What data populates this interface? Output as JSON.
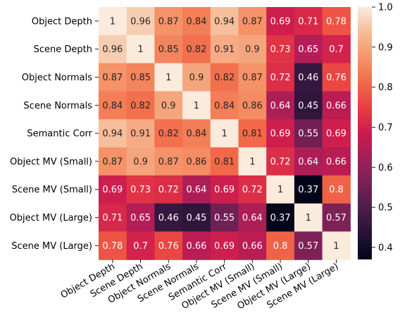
{
  "chart_data": {
    "type": "heatmap",
    "title": "",
    "xlabel": "",
    "ylabel": "",
    "labels": [
      "Object Depth",
      "Scene Depth",
      "Object Normals",
      "Scene Normals",
      "Semantic Corr",
      "Object MV (Small)",
      "Scene MV (Small)",
      "Object MV (Large)",
      "Scene MV (Large)"
    ],
    "matrix": [
      [
        1,
        0.96,
        0.87,
        0.84,
        0.94,
        0.87,
        0.69,
        0.71,
        0.78
      ],
      [
        0.96,
        1,
        0.85,
        0.82,
        0.91,
        0.9,
        0.73,
        0.65,
        0.7
      ],
      [
        0.87,
        0.85,
        1,
        0.9,
        0.82,
        0.87,
        0.72,
        0.46,
        0.76
      ],
      [
        0.84,
        0.82,
        0.9,
        1,
        0.84,
        0.86,
        0.64,
        0.45,
        0.66
      ],
      [
        0.94,
        0.91,
        0.82,
        0.84,
        1,
        0.81,
        0.69,
        0.55,
        0.69
      ],
      [
        0.87,
        0.9,
        0.87,
        0.86,
        0.81,
        1,
        0.72,
        0.64,
        0.66
      ],
      [
        0.69,
        0.73,
        0.72,
        0.64,
        0.69,
        0.72,
        1,
        0.37,
        0.8
      ],
      [
        0.71,
        0.65,
        0.46,
        0.45,
        0.55,
        0.64,
        0.37,
        1,
        0.57
      ],
      [
        0.78,
        0.7,
        0.76,
        0.66,
        0.69,
        0.66,
        0.8,
        0.57,
        1
      ]
    ],
    "colorbar": {
      "min": 0.37,
      "max": 1.0,
      "ticks": [
        0.4,
        0.5,
        0.6,
        0.7,
        0.8,
        0.9,
        1.0
      ],
      "tick_labels": [
        "0.4",
        "0.5",
        "0.6",
        "0.7",
        "0.8",
        "0.9",
        "1.0"
      ],
      "colormap": "rocket"
    },
    "grid": false,
    "legend": "colorbar-right"
  }
}
